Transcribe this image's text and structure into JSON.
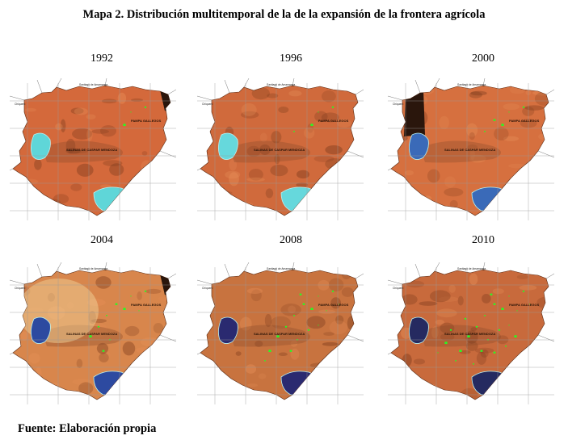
{
  "title": "Mapa 2. Distribución multitemporal de la de la expansión de la frontera agrícola",
  "source": "Fuente: Elaboración propia",
  "map_labels": {
    "top_place": "Santiago de Amamanga",
    "left_place": "Chiquero",
    "east_place": "PAMPA GALLEGOS",
    "center_place": "SALINAS DE CASPAR MENDOZA"
  },
  "panels": [
    {
      "year": "1992",
      "land_color": "#d4693b",
      "salt_color": "#5fd6d8",
      "dark_corner": true,
      "green_patches": 3
    },
    {
      "year": "1996",
      "land_color": "#d06a3c",
      "salt_color": "#66d8dc",
      "dark_corner": false,
      "green_patches": 4
    },
    {
      "year": "2000",
      "land_color": "#d6703f",
      "salt_color": "#3a6ab8",
      "dark_corner": true,
      "green_patches": 5
    },
    {
      "year": "2004",
      "land_color": "#d8864c",
      "salt_color": "#2d4aa0",
      "dark_corner": true,
      "green_patches": 10
    },
    {
      "year": "2008",
      "land_color": "#c8733f",
      "salt_color": "#2a2a70",
      "dark_corner": false,
      "green_patches": 16
    },
    {
      "year": "2010",
      "land_color": "#c86a3c",
      "salt_color": "#252a60",
      "dark_corner": false,
      "green_patches": 24
    }
  ],
  "colors": {
    "agriculture": "#22ff22",
    "grid": "#9a9a9a"
  }
}
